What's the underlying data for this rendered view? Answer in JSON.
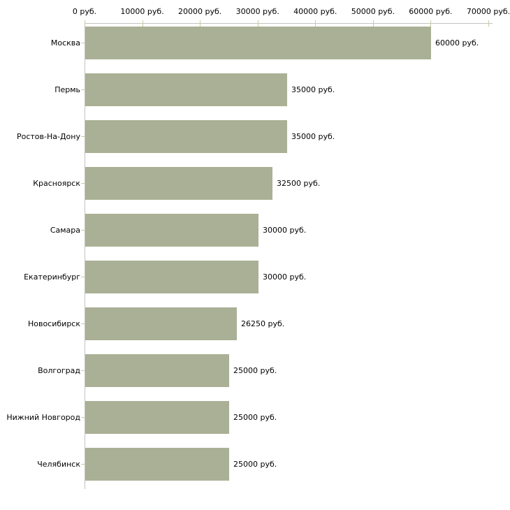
{
  "chart_data": {
    "type": "bar",
    "orientation": "horizontal",
    "title": "",
    "xlabel": "",
    "ylabel": "",
    "unit": "руб.",
    "xlim": [
      0,
      70000
    ],
    "grid": false,
    "legend": false,
    "categories": [
      "Москва",
      "Пермь",
      "Ростов-На-Дону",
      "Красноярск",
      "Самара",
      "Екатеринбург",
      "Новосибирск",
      "Волгоград",
      "Нижний Новгород",
      "Челябинск"
    ],
    "values": [
      60000,
      35000,
      35000,
      32500,
      30000,
      30000,
      26250,
      25000,
      25000,
      25000
    ],
    "value_labels": [
      "60000 руб.",
      "35000 руб.",
      "35000 руб.",
      "32500 руб.",
      "30000 руб.",
      "30000 руб.",
      "26250 руб.",
      "25000 руб.",
      "25000 руб.",
      "25000 руб."
    ],
    "x_ticks": [
      0,
      10000,
      20000,
      30000,
      40000,
      50000,
      60000,
      70000
    ],
    "x_tick_labels": [
      "0 руб.",
      "10000 руб.",
      "20000 руб.",
      "30000 руб.",
      "40000 руб.",
      "50000 руб.",
      "60000 руб.",
      "70000 руб."
    ],
    "colors": {
      "bar": "#aab095",
      "axis": "#c3c3c3",
      "tick": "#cbc8a2",
      "text": "#000000",
      "background": "#ffffff"
    }
  }
}
